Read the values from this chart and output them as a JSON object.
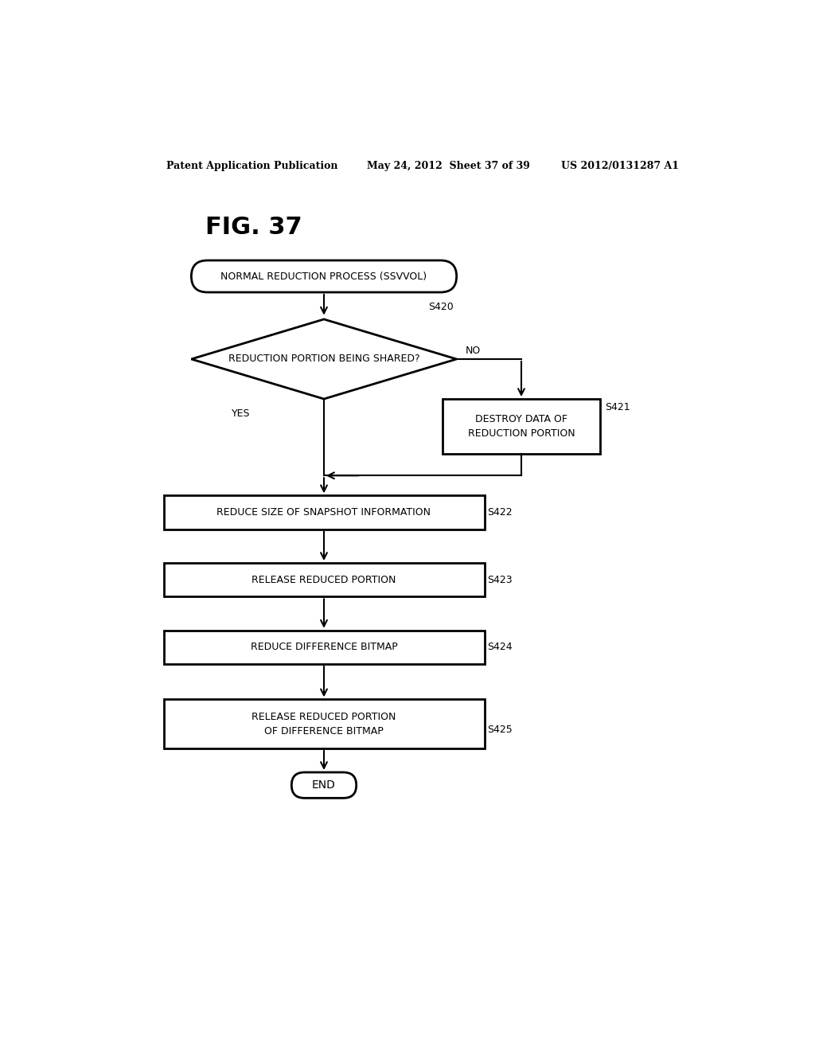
{
  "fig_label": "FIG. 37",
  "header_left": "Patent Application Publication",
  "header_mid": "May 24, 2012  Sheet 37 of 39",
  "header_right": "US 2012/0131287 A1",
  "start_label": "NORMAL REDUCTION PROCESS (SSVVOL)",
  "diamond_label": "REDUCTION PORTION BEING SHARED?",
  "diamond_step": "S420",
  "yes_label": "YES",
  "no_label": "NO",
  "box_s421_label": "DESTROY DATA OF\nREDUCTION PORTION",
  "box_s421_step": "S421",
  "box_s422_label": "REDUCE SIZE OF SNAPSHOT INFORMATION",
  "box_s422_step": "S422",
  "box_s423_label": "RELEASE REDUCED PORTION",
  "box_s423_step": "S423",
  "box_s424_label": "REDUCE DIFFERENCE BITMAP",
  "box_s424_step": "S424",
  "box_s425_label": "RELEASE REDUCED PORTION\nOF DIFFERENCE BITMAP",
  "box_s425_step": "S425",
  "end_label": "END",
  "bg_color": "#ffffff",
  "shape_color": "#ffffff",
  "line_color": "#000000",
  "text_color": "#000000"
}
